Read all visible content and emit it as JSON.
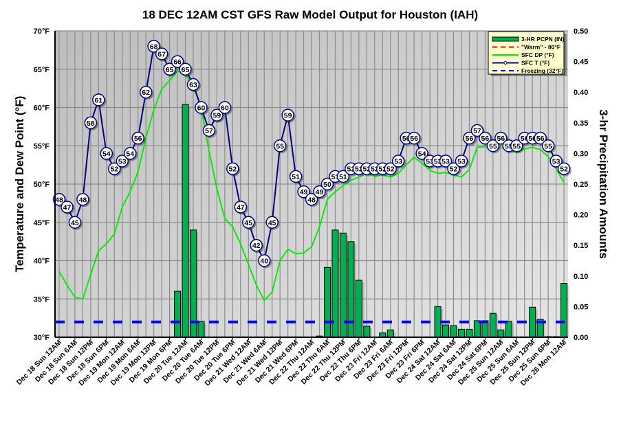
{
  "chart_data": {
    "type": "line",
    "title": "18 DEC 12AM CST GFS Raw Model Output for Houston (IAH)",
    "ylabel": "Temperature and Dew Point (°F)",
    "y2label": "3-hr Precipitation Amounts",
    "ylim": [
      30,
      70
    ],
    "y2lim": [
      0,
      0.5
    ],
    "yticks": [
      "30°F",
      "35°F",
      "40°F",
      "45°F",
      "50°F",
      "55°F",
      "60°F",
      "65°F",
      "70°F"
    ],
    "y2ticks": [
      "0.00",
      "0.05",
      "0.10",
      "0.15",
      "0.20",
      "0.25",
      "0.30",
      "0.35",
      "0.40",
      "0.45",
      "0.50"
    ],
    "grid": true,
    "legend_position": "top-right",
    "legend": [
      "3-HR PCPN (IN)",
      "\"Warm\" - 80°F",
      "SFC DP (°F)",
      "SFC T (°F)",
      "Freezing (32°F)"
    ],
    "x_labels": [
      "Dec 18 Sun 12AM",
      "Dec 18 Sun 6AM",
      "Dec 18 Sun 12PM",
      "Dec 18 Sun 6PM",
      "Dec 19 Mon 12AM",
      "Dec 19 Mon 6AM",
      "Dec 19 Mon 12PM",
      "Dec 19 Mon 6PM",
      "Dec 20 Tue 12AM",
      "Dec 20 Tue 6AM",
      "Dec 20 Tue 12PM",
      "Dec 20 Tue 6PM",
      "Dec 21 Wed 12AM",
      "Dec 21 Wed 6AM",
      "Dec 21 Wed 12PM",
      "Dec 21 Wed 6PM",
      "Dec 22 Thu 12AM",
      "Dec 22 Thu 6AM",
      "Dec 22 Thu 12PM",
      "Dec 22 Thu 6PM",
      "Dec 23 Fri 12AM",
      "Dec 23 Fri 6AM",
      "Dec 23 Fri 12PM",
      "Dec 23 Fri 6PM",
      "Dec 24 Sat 12AM",
      "Dec 24 Sat 6AM",
      "Dec 24 Sat 12PM",
      "Dec 24 Sat 6PM",
      "Dec 25 Sun 12AM",
      "Dec 25 Sun 6AM",
      "Dec 25 Sun 12PM",
      "Dec 25 Sun 6PM",
      "Dec 26 Mon 12AM"
    ],
    "series": [
      {
        "name": "SFC T (°F)",
        "color": "#000080",
        "values": [
          48,
          47,
          45,
          48,
          58,
          61,
          54,
          52,
          53,
          54,
          56,
          62,
          68,
          67,
          65,
          66,
          65,
          63,
          60,
          57,
          59,
          60,
          52,
          47,
          45,
          42,
          40,
          45,
          55,
          59,
          51,
          49,
          48,
          49,
          50,
          51,
          51,
          52,
          52,
          52,
          52,
          52,
          52,
          53,
          56,
          56,
          54,
          53,
          53,
          53,
          52,
          53,
          56,
          57,
          56,
          55,
          56,
          55,
          55,
          56,
          56,
          56,
          55,
          53,
          52
        ]
      },
      {
        "name": "SFC DP (°F)",
        "color": "#00ee00",
        "values": [
          38.6,
          36.8,
          35.2,
          35,
          38.2,
          41.3,
          42.2,
          43.5,
          47,
          49,
          51.6,
          56,
          59.7,
          62.4,
          63.5,
          64.8,
          64.3,
          62.8,
          60,
          54.3,
          49.4,
          45.5,
          44.4,
          42.2,
          39.5,
          36.8,
          34.8,
          35.9,
          40,
          41.5,
          40.9,
          41,
          41.8,
          44.4,
          48,
          49,
          49.8,
          50.5,
          50.9,
          51.4,
          51,
          51.2,
          50.9,
          51.4,
          52.5,
          53.5,
          52.7,
          51.8,
          51.4,
          51.5,
          51.2,
          50.9,
          51.9,
          54.8,
          54.9,
          54.7,
          54.8,
          54.5,
          54.1,
          54.6,
          54.8,
          54.5,
          53.6,
          52,
          50.2
        ]
      },
      {
        "name": "Freezing (32°F)",
        "color": "#0000ff",
        "value": 32
      },
      {
        "name": "\"Warm\" - 80°F",
        "color": "#ff0000",
        "value": 80
      }
    ],
    "precip": {
      "name": "3-HR PCPN (IN)",
      "color": "#00b050",
      "points": [
        [
          15,
          0.075
        ],
        [
          16,
          0.38
        ],
        [
          17,
          0.175
        ],
        [
          18,
          0.026
        ],
        [
          33,
          0.002
        ],
        [
          34,
          0.114
        ],
        [
          35,
          0.175
        ],
        [
          36,
          0.17
        ],
        [
          37,
          0.156
        ],
        [
          38,
          0.093
        ],
        [
          39,
          0.018
        ],
        [
          41,
          0.007
        ],
        [
          42,
          0.012
        ],
        [
          48,
          0.05
        ],
        [
          49,
          0.02
        ],
        [
          50,
          0.019
        ],
        [
          51,
          0.013
        ],
        [
          52,
          0.013
        ],
        [
          53,
          0.027
        ],
        [
          54,
          0.027
        ],
        [
          55,
          0.039
        ],
        [
          56,
          0.012
        ],
        [
          57,
          0.026
        ],
        [
          60,
          0.049
        ],
        [
          61,
          0.029
        ],
        [
          62,
          0.001
        ],
        [
          63,
          0.001
        ],
        [
          64,
          0.088
        ]
      ]
    }
  }
}
